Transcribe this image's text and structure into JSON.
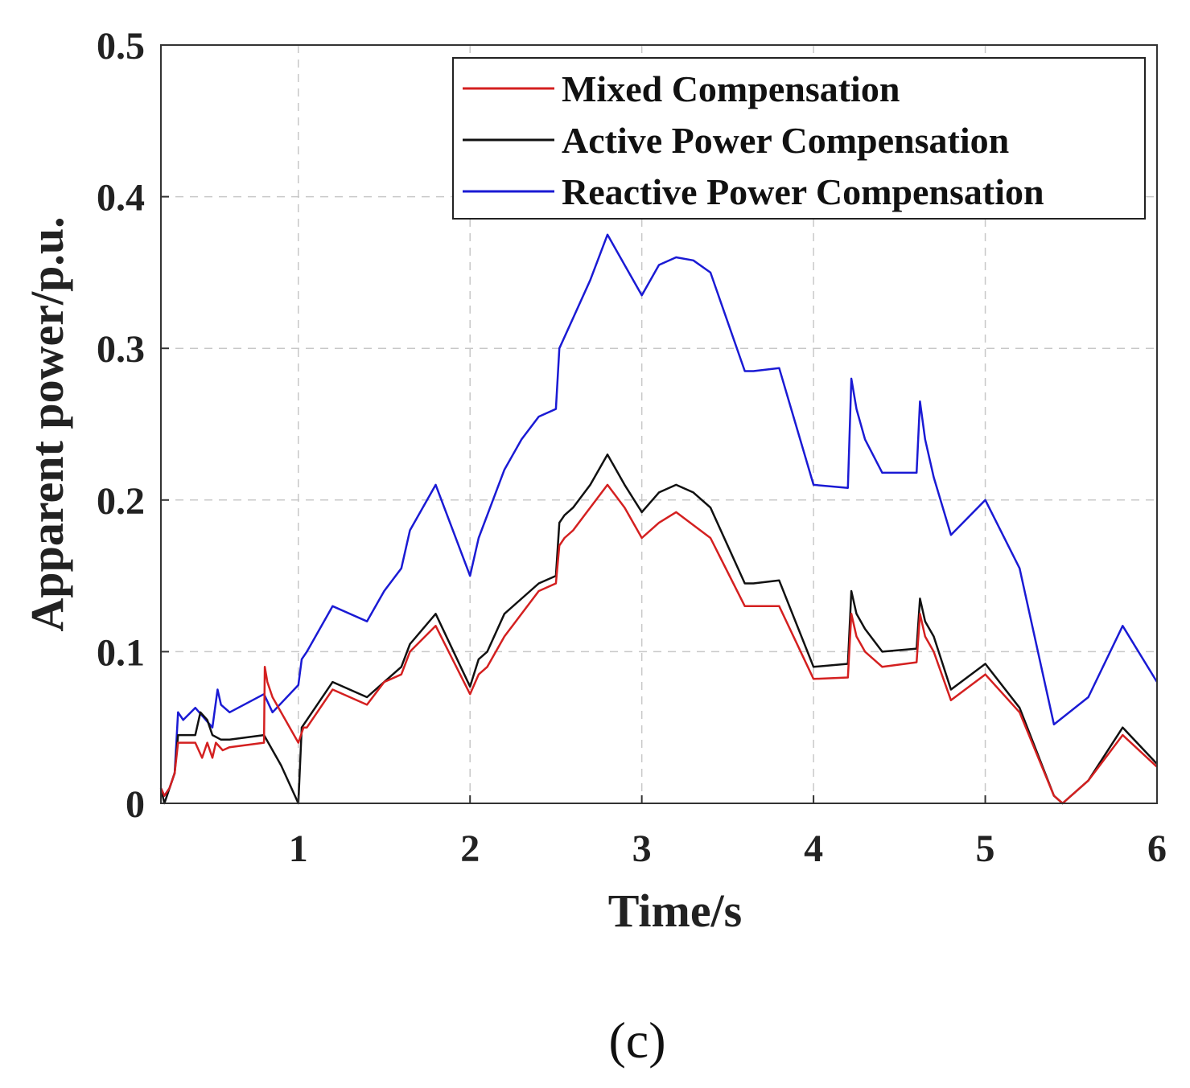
{
  "chart_data": {
    "type": "line",
    "title": "",
    "xlabel": "Time/s",
    "ylabel": "Apparent power/p.u.",
    "xlim": [
      0.2,
      6
    ],
    "ylim": [
      0,
      0.5
    ],
    "xticks": [
      1,
      2,
      3,
      4,
      5,
      6
    ],
    "yticks": [
      0,
      0.1,
      0.2,
      0.3,
      0.4,
      0.5
    ],
    "xtick_labels": [
      "1",
      "2",
      "3",
      "4",
      "5",
      "6"
    ],
    "ytick_labels": [
      "0",
      "0.1",
      "0.2",
      "0.3",
      "0.4",
      "0.5"
    ],
    "grid": true,
    "legend_position": "top-right",
    "panel_label": "(c)",
    "series": [
      {
        "name": "Mixed Compensation",
        "color": "#d42020",
        "x": [
          0.2,
          0.22,
          0.25,
          0.28,
          0.3,
          0.4,
          0.44,
          0.47,
          0.5,
          0.52,
          0.56,
          0.6,
          0.8,
          0.805,
          0.82,
          0.85,
          1.0,
          1.03,
          1.05,
          1.2,
          1.4,
          1.5,
          1.6,
          1.65,
          1.8,
          2.0,
          2.05,
          2.1,
          2.2,
          2.4,
          2.5,
          2.52,
          2.55,
          2.6,
          2.7,
          2.8,
          2.9,
          3.0,
          3.1,
          3.2,
          3.4,
          3.6,
          3.65,
          3.8,
          4.0,
          4.2,
          4.22,
          4.25,
          4.3,
          4.4,
          4.6,
          4.62,
          4.65,
          4.7,
          4.8,
          5.0,
          5.2,
          5.4,
          5.45,
          5.6,
          5.8,
          6.0
        ],
        "y": [
          0.01,
          0.005,
          0.01,
          0.02,
          0.04,
          0.04,
          0.03,
          0.04,
          0.03,
          0.04,
          0.035,
          0.037,
          0.04,
          0.09,
          0.08,
          0.07,
          0.04,
          0.05,
          0.05,
          0.075,
          0.065,
          0.08,
          0.085,
          0.1,
          0.117,
          0.072,
          0.085,
          0.09,
          0.11,
          0.14,
          0.145,
          0.17,
          0.175,
          0.18,
          0.195,
          0.21,
          0.195,
          0.175,
          0.185,
          0.192,
          0.175,
          0.13,
          0.13,
          0.13,
          0.082,
          0.083,
          0.125,
          0.11,
          0.1,
          0.09,
          0.093,
          0.125,
          0.11,
          0.1,
          0.068,
          0.085,
          0.06,
          0.005,
          0.0,
          0.015,
          0.045,
          0.024
        ]
      },
      {
        "name": "Active Power Compensation",
        "color": "#111111",
        "x": [
          0.2,
          0.22,
          0.25,
          0.28,
          0.3,
          0.4,
          0.43,
          0.47,
          0.5,
          0.55,
          0.6,
          0.8,
          0.9,
          1.0,
          1.02,
          1.05,
          1.2,
          1.4,
          1.5,
          1.6,
          1.65,
          1.8,
          2.0,
          2.05,
          2.1,
          2.2,
          2.4,
          2.5,
          2.52,
          2.55,
          2.6,
          2.7,
          2.8,
          2.9,
          3.0,
          3.1,
          3.2,
          3.3,
          3.4,
          3.6,
          3.65,
          3.8,
          4.0,
          4.2,
          4.22,
          4.25,
          4.3,
          4.4,
          4.6,
          4.62,
          4.65,
          4.7,
          4.8,
          5.0,
          5.2,
          5.4,
          5.45,
          5.6,
          5.8,
          6.0
        ],
        "y": [
          0.01,
          0.0,
          0.01,
          0.02,
          0.045,
          0.045,
          0.06,
          0.055,
          0.045,
          0.042,
          0.042,
          0.045,
          0.025,
          0.0,
          0.05,
          0.055,
          0.08,
          0.07,
          0.08,
          0.09,
          0.105,
          0.125,
          0.077,
          0.095,
          0.1,
          0.125,
          0.145,
          0.15,
          0.185,
          0.19,
          0.195,
          0.21,
          0.23,
          0.21,
          0.192,
          0.205,
          0.21,
          0.205,
          0.195,
          0.145,
          0.145,
          0.147,
          0.09,
          0.092,
          0.14,
          0.125,
          0.115,
          0.1,
          0.102,
          0.135,
          0.12,
          0.11,
          0.075,
          0.092,
          0.063,
          0.005,
          0.0,
          0.015,
          0.05,
          0.026
        ]
      },
      {
        "name": "Reactive Power Compensation",
        "color": "#1a1ad4",
        "x": [
          0.2,
          0.22,
          0.25,
          0.28,
          0.3,
          0.33,
          0.4,
          0.5,
          0.53,
          0.55,
          0.6,
          0.8,
          0.85,
          1.0,
          1.02,
          1.05,
          1.1,
          1.2,
          1.4,
          1.5,
          1.6,
          1.65,
          1.8,
          2.0,
          2.05,
          2.2,
          2.3,
          2.4,
          2.5,
          2.52,
          2.6,
          2.7,
          2.8,
          2.9,
          3.0,
          3.1,
          3.2,
          3.3,
          3.4,
          3.6,
          3.65,
          3.8,
          4.0,
          4.2,
          4.22,
          4.25,
          4.3,
          4.4,
          4.6,
          4.62,
          4.65,
          4.7,
          4.8,
          5.0,
          5.2,
          5.4,
          5.6,
          5.8,
          6.0
        ],
        "y": [
          0.01,
          0.005,
          0.01,
          0.02,
          0.06,
          0.055,
          0.063,
          0.05,
          0.075,
          0.065,
          0.06,
          0.072,
          0.06,
          0.078,
          0.095,
          0.1,
          0.11,
          0.13,
          0.12,
          0.14,
          0.155,
          0.18,
          0.21,
          0.15,
          0.175,
          0.22,
          0.24,
          0.255,
          0.26,
          0.3,
          0.32,
          0.345,
          0.375,
          0.355,
          0.335,
          0.355,
          0.36,
          0.358,
          0.35,
          0.285,
          0.285,
          0.287,
          0.21,
          0.208,
          0.28,
          0.26,
          0.24,
          0.218,
          0.218,
          0.265,
          0.24,
          0.215,
          0.177,
          0.2,
          0.155,
          0.052,
          0.07,
          0.117,
          0.08
        ]
      }
    ]
  }
}
